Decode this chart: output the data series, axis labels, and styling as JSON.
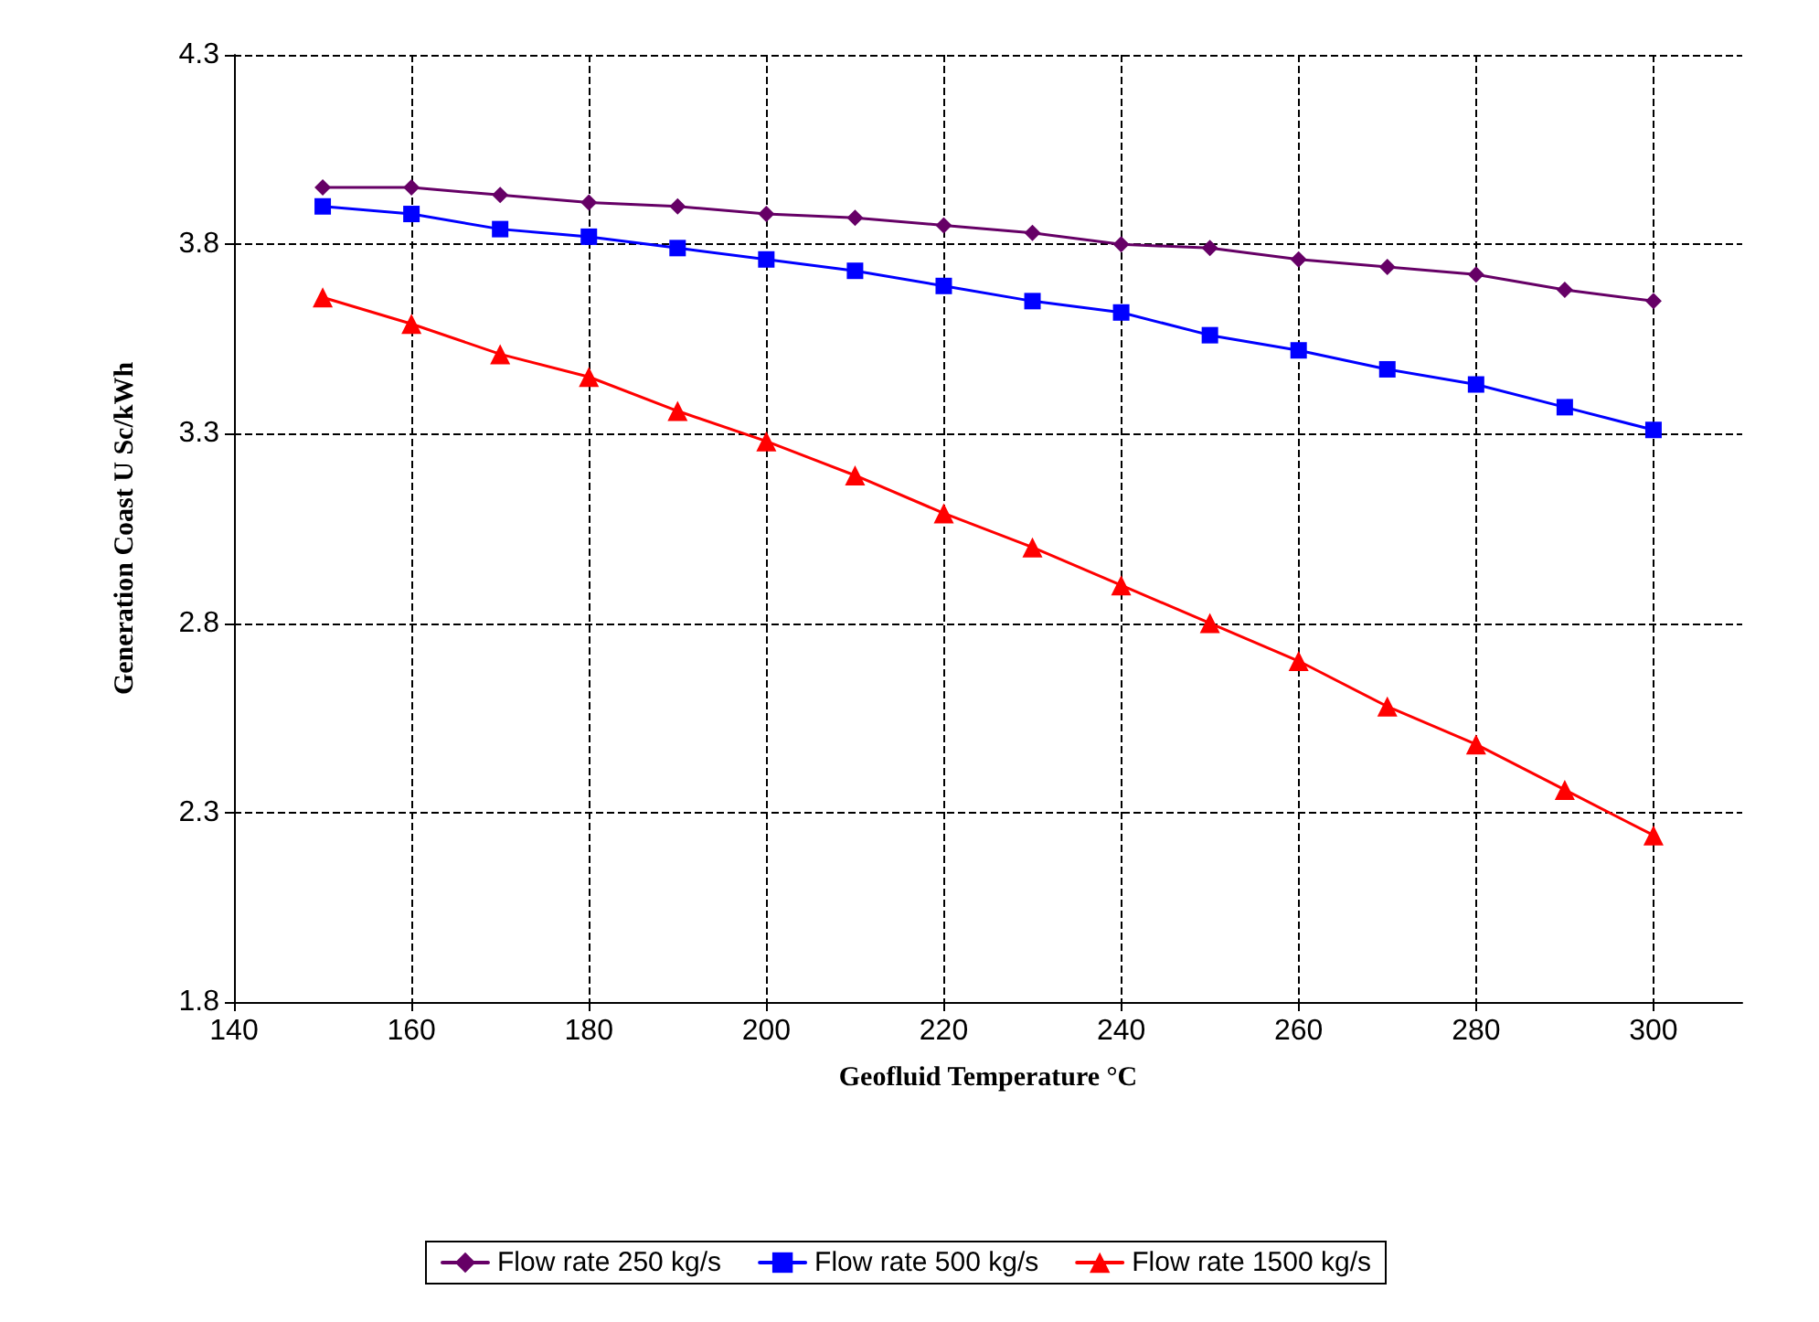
{
  "chart_data": {
    "type": "line",
    "xlabel": "Geofluid Temperature °C",
    "ylabel": "Generation Coast U Sc/kWh",
    "x": [
      150,
      160,
      170,
      180,
      190,
      200,
      210,
      220,
      230,
      240,
      250,
      260,
      270,
      280,
      290,
      300
    ],
    "series": [
      {
        "name": "Flow rate 250 kg/s",
        "color": "#660066",
        "marker": "diamond",
        "values": [
          3.95,
          3.95,
          3.93,
          3.91,
          3.9,
          3.88,
          3.87,
          3.85,
          3.83,
          3.8,
          3.79,
          3.76,
          3.74,
          3.72,
          3.68,
          3.65
        ]
      },
      {
        "name": "Flow rate 500 kg/s",
        "color": "#0000ff",
        "marker": "square",
        "values": [
          3.9,
          3.88,
          3.84,
          3.82,
          3.79,
          3.76,
          3.73,
          3.69,
          3.65,
          3.62,
          3.56,
          3.52,
          3.47,
          3.43,
          3.37,
          3.31
        ]
      },
      {
        "name": "Flow rate 1500 kg/s",
        "color": "#ff0000",
        "marker": "triangle",
        "values": [
          3.66,
          3.59,
          3.51,
          3.45,
          3.36,
          3.28,
          3.19,
          3.09,
          3,
          2.9,
          2.8,
          2.7,
          2.58,
          2.48,
          2.36,
          2.24
        ]
      }
    ],
    "xlim": [
      140,
      310
    ],
    "xticks": [
      140,
      160,
      180,
      200,
      220,
      240,
      260,
      280,
      300
    ],
    "ylim": [
      1.8,
      4.3
    ],
    "yticks": [
      1.8,
      2.3,
      2.8,
      3.3,
      3.8,
      4.3
    ],
    "grid": true,
    "legend": "bottom",
    "line_style": "solid"
  }
}
